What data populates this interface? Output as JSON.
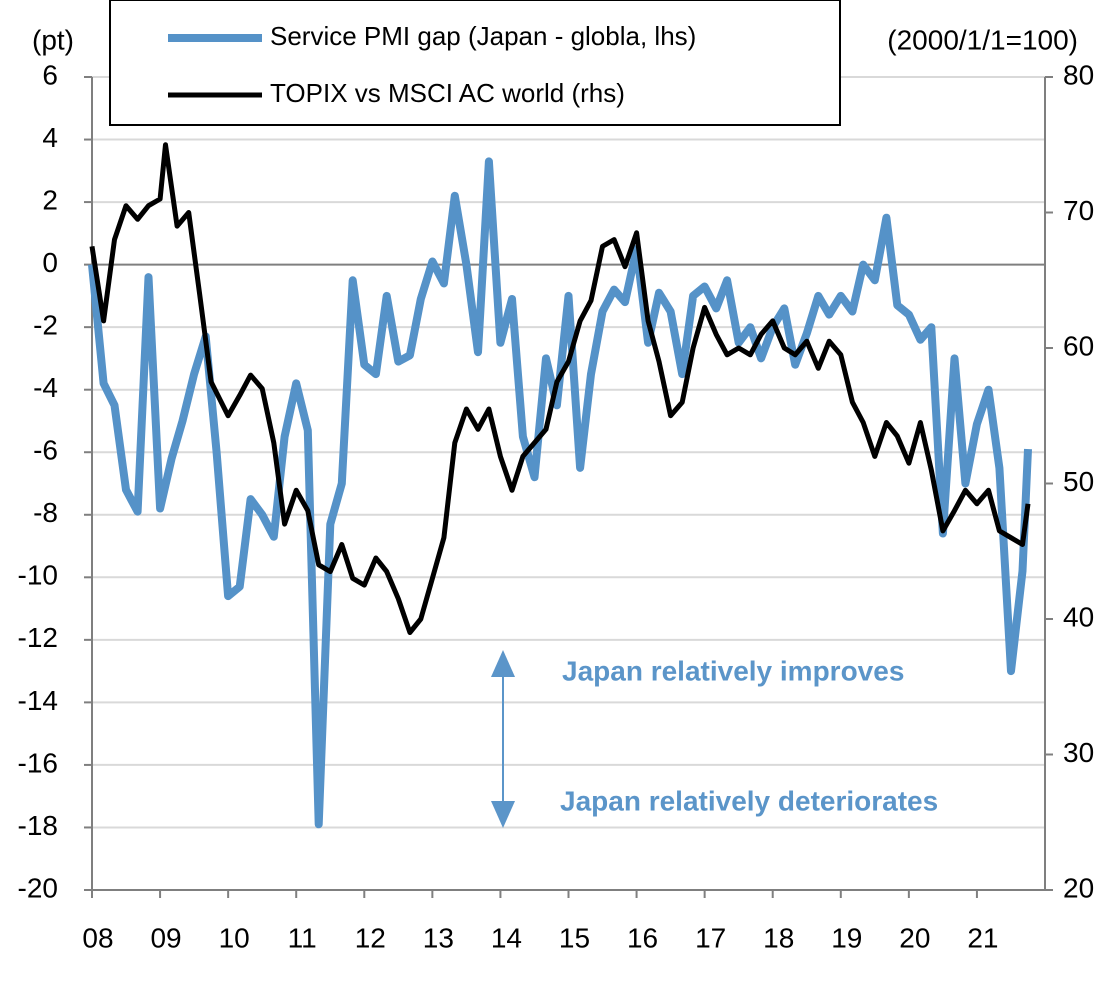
{
  "chart_data": {
    "type": "line",
    "y_label": "(pt)",
    "y2_label": "(2000/1/1=100)",
    "xlim": [
      2008,
      2022
    ],
    "xticks": [
      {
        "value": 2008,
        "label": "08"
      },
      {
        "value": 2009,
        "label": "09"
      },
      {
        "value": 2010,
        "label": "10"
      },
      {
        "value": 2011,
        "label": "11"
      },
      {
        "value": 2012,
        "label": "12"
      },
      {
        "value": 2013,
        "label": "13"
      },
      {
        "value": 2014,
        "label": "14"
      },
      {
        "value": 2015,
        "label": "15"
      },
      {
        "value": 2016,
        "label": "16"
      },
      {
        "value": 2017,
        "label": "17"
      },
      {
        "value": 2018,
        "label": "18"
      },
      {
        "value": 2019,
        "label": "19"
      },
      {
        "value": 2020,
        "label": "20"
      },
      {
        "value": 2021,
        "label": "21"
      }
    ],
    "ylim": [
      -20,
      6
    ],
    "yticks": [
      6,
      4,
      2,
      0,
      -2,
      -4,
      -6,
      -8,
      -10,
      -12,
      -14,
      -16,
      -18,
      -20
    ],
    "y2lim": [
      20,
      80
    ],
    "y2ticks": [
      80,
      70,
      60,
      50,
      40,
      30,
      20
    ],
    "grid": true,
    "annotations": [
      "Japan relatively improves",
      "Japan relatively deteriorates"
    ],
    "series": [
      {
        "name": "Service PMI gap (Japan - globla, lhs)",
        "color": "#5592c8",
        "axis": "y",
        "x": [
          2008.0,
          2008.17,
          2008.33,
          2008.5,
          2008.67,
          2008.83,
          2009.0,
          2009.17,
          2009.33,
          2009.5,
          2009.67,
          2009.83,
          2010.0,
          2010.17,
          2010.33,
          2010.5,
          2010.67,
          2010.83,
          2011.0,
          2011.17,
          2011.33,
          2011.5,
          2011.67,
          2011.83,
          2012.0,
          2012.17,
          2012.33,
          2012.5,
          2012.67,
          2012.83,
          2013.0,
          2013.17,
          2013.33,
          2013.5,
          2013.67,
          2013.83,
          2014.0,
          2014.17,
          2014.33,
          2014.5,
          2014.67,
          2014.83,
          2015.0,
          2015.17,
          2015.33,
          2015.5,
          2015.67,
          2015.83,
          2016.0,
          2016.17,
          2016.33,
          2016.5,
          2016.67,
          2016.83,
          2017.0,
          2017.17,
          2017.33,
          2017.5,
          2017.67,
          2017.83,
          2018.0,
          2018.17,
          2018.33,
          2018.5,
          2018.67,
          2018.83,
          2019.0,
          2019.17,
          2019.33,
          2019.5,
          2019.67,
          2019.83,
          2020.0,
          2020.17,
          2020.33,
          2020.5,
          2020.67,
          2020.83,
          2021.0,
          2021.17,
          2021.33,
          2021.5,
          2021.67,
          2021.75
        ],
        "values": [
          0,
          -3.8,
          -4.5,
          -7.2,
          -7.9,
          -0.4,
          -7.8,
          -6.2,
          -5.0,
          -3.5,
          -2.3,
          -6.0,
          -10.6,
          -10.3,
          -7.5,
          -8.0,
          -8.7,
          -5.5,
          -3.8,
          -5.3,
          -17.9,
          -8.3,
          -7.0,
          -0.5,
          -3.2,
          -3.5,
          -1.0,
          -3.1,
          -2.9,
          -1.1,
          0.1,
          -0.6,
          2.2,
          0.0,
          -2.8,
          3.3,
          -2.5,
          -1.1,
          -5.5,
          -6.8,
          -3.0,
          -4.5,
          -1.0,
          -6.5,
          -3.5,
          -1.5,
          -0.8,
          -1.2,
          0.5,
          -2.5,
          -0.9,
          -1.5,
          -3.5,
          -1.0,
          -0.7,
          -1.4,
          -0.5,
          -2.5,
          -2.0,
          -3.0,
          -2.0,
          -1.4,
          -3.2,
          -2.2,
          -1.0,
          -1.6,
          -1.0,
          -1.5,
          0.0,
          -0.5,
          1.5,
          -1.3,
          -1.6,
          -2.4,
          -2.0,
          -8.6,
          -3.0,
          -7.0,
          -5.1,
          -4.0,
          -6.5,
          -13.0,
          -9.8,
          -5.9
        ]
      },
      {
        "name": "TOPIX vs MSCI AC world (rhs)",
        "color": "#000000",
        "axis": "y2",
        "x": [
          2008.0,
          2008.17,
          2008.33,
          2008.5,
          2008.67,
          2008.83,
          2009.0,
          2009.08,
          2009.25,
          2009.42,
          2009.58,
          2009.75,
          2010.0,
          2010.17,
          2010.33,
          2010.5,
          2010.67,
          2010.83,
          2011.0,
          2011.17,
          2011.33,
          2011.5,
          2011.67,
          2011.83,
          2012.0,
          2012.17,
          2012.33,
          2012.5,
          2012.67,
          2012.83,
          2013.0,
          2013.17,
          2013.33,
          2013.5,
          2013.67,
          2013.83,
          2014.0,
          2014.17,
          2014.33,
          2014.5,
          2014.67,
          2014.83,
          2015.0,
          2015.17,
          2015.33,
          2015.5,
          2015.67,
          2015.83,
          2016.0,
          2016.17,
          2016.33,
          2016.5,
          2016.67,
          2016.83,
          2017.0,
          2017.17,
          2017.33,
          2017.5,
          2017.67,
          2017.83,
          2018.0,
          2018.17,
          2018.33,
          2018.5,
          2018.67,
          2018.83,
          2019.0,
          2019.17,
          2019.33,
          2019.5,
          2019.67,
          2019.83,
          2020.0,
          2020.17,
          2020.33,
          2020.5,
          2020.67,
          2020.83,
          2021.0,
          2021.17,
          2021.33,
          2021.5,
          2021.67,
          2021.75
        ],
        "values": [
          67.5,
          62,
          68,
          70.5,
          69.5,
          70.5,
          71,
          75,
          69,
          70,
          64,
          57.5,
          55,
          56.5,
          58,
          57,
          53,
          47,
          49.5,
          48,
          44,
          43.5,
          45.5,
          43,
          42.5,
          44.5,
          43.5,
          41.5,
          39,
          40,
          43,
          46,
          53,
          55.5,
          54,
          55.5,
          52,
          49.5,
          52,
          53,
          54,
          57.5,
          59,
          62,
          63.5,
          67.5,
          68,
          66,
          68.5,
          62,
          59,
          55,
          56,
          60,
          63,
          61,
          59.5,
          60,
          59.5,
          61,
          62,
          60,
          59.5,
          60.5,
          58.5,
          60.5,
          59.5,
          56,
          54.5,
          52,
          54.5,
          53.5,
          51.5,
          54.5,
          51,
          46.5,
          48,
          49.5,
          48.5,
          49.5,
          46.5,
          46,
          45.5,
          48.5
        ]
      }
    ]
  }
}
